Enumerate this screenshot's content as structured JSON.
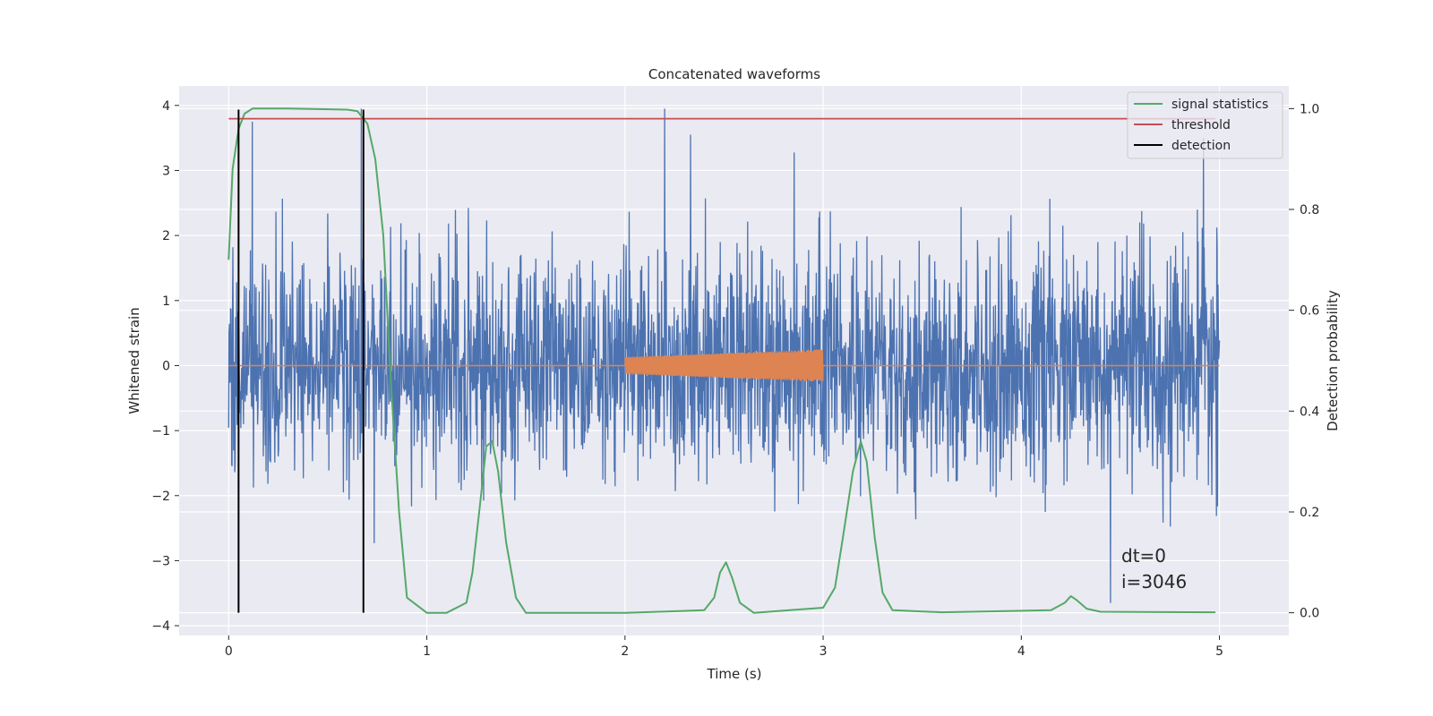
{
  "chart_data": {
    "type": "line",
    "title": "Concatenated waveforms",
    "xlabel": "Time (s)",
    "ylabel": "Whitened strain",
    "y2label": "Detection probability",
    "xlim": [
      -0.25,
      5.35
    ],
    "ylim": [
      -4.15,
      4.3
    ],
    "y2lim": [
      -0.045,
      1.045
    ],
    "xticks": [
      0,
      1,
      2,
      3,
      4,
      5
    ],
    "yticks": [
      -4,
      -3,
      -2,
      -1,
      0,
      1,
      2,
      3,
      4
    ],
    "y2ticks": [
      0.0,
      0.2,
      0.4,
      0.6,
      0.8,
      1.0
    ],
    "ytick_labels": [
      "−4",
      "−3",
      "−2",
      "−1",
      "0",
      "1",
      "2",
      "3",
      "4"
    ],
    "xtick_labels": [
      "0",
      "1",
      "2",
      "3",
      "4",
      "5"
    ],
    "y2tick_labels": [
      "0.0",
      "0.2",
      "0.4",
      "0.6",
      "0.8",
      "1.0"
    ],
    "grid": true,
    "legend_position": "top-right",
    "colors": {
      "background": "#eaeaf2",
      "strain": "#4c72b0",
      "injected": "#dd8452",
      "signal_statistics": "#55a868",
      "threshold": "#c44e52",
      "detection": "#000000"
    },
    "series": [
      {
        "name": "signal statistics",
        "axis": "right",
        "x": [
          0.0,
          0.02,
          0.05,
          0.08,
          0.12,
          0.3,
          0.6,
          0.65,
          0.7,
          0.74,
          0.78,
          0.8,
          0.82,
          0.86,
          0.9,
          1.0,
          1.1,
          1.2,
          1.23,
          1.27,
          1.3,
          1.33,
          1.36,
          1.4,
          1.45,
          1.5,
          2.0,
          2.4,
          2.45,
          2.48,
          2.51,
          2.54,
          2.58,
          2.65,
          3.0,
          3.06,
          3.1,
          3.15,
          3.19,
          3.22,
          3.26,
          3.3,
          3.35,
          3.6,
          4.15,
          4.22,
          4.25,
          4.28,
          4.33,
          4.4,
          4.98
        ],
        "y": [
          0.7,
          0.88,
          0.96,
          0.99,
          1.0,
          1.0,
          0.998,
          0.995,
          0.97,
          0.9,
          0.75,
          0.6,
          0.45,
          0.2,
          0.03,
          0.0,
          0.0,
          0.02,
          0.08,
          0.22,
          0.33,
          0.34,
          0.28,
          0.14,
          0.03,
          0.0,
          0.0,
          0.005,
          0.03,
          0.08,
          0.1,
          0.07,
          0.02,
          0.0,
          0.01,
          0.05,
          0.15,
          0.28,
          0.34,
          0.3,
          0.15,
          0.04,
          0.005,
          0.001,
          0.005,
          0.02,
          0.033,
          0.025,
          0.008,
          0.002,
          0.001
        ]
      },
      {
        "name": "threshold",
        "axis": "right",
        "x": [
          0.0,
          4.98
        ],
        "y": [
          0.98,
          0.98
        ]
      },
      {
        "name": "detection",
        "axis": "right",
        "segments": [
          {
            "x": 0.05,
            "y0": 0.0,
            "y1": 0.998
          },
          {
            "x": 0.68,
            "y0": 0.0,
            "y1": 0.998
          }
        ]
      }
    ],
    "noise_series": {
      "axis": "left",
      "t_start": 0.0,
      "t_end": 5.0,
      "approx_amplitude_range": [
        -3.5,
        3.95
      ],
      "peaks": [
        {
          "x": 0.12,
          "y": 3.75
        },
        {
          "x": 0.67,
          "y": 3.95
        },
        {
          "x": 2.2,
          "y": 3.95
        },
        {
          "x": 2.33,
          "y": 3.55
        },
        {
          "x": 4.92,
          "y": 3.5
        },
        {
          "x": 4.45,
          "y": -3.65
        }
      ]
    },
    "injected_chirp": {
      "axis": "left",
      "x_start": 2.0,
      "x_end": 3.0,
      "amplitude_start": 0.13,
      "amplitude_end": 0.25,
      "baseline": 0.0
    },
    "annotations": [
      "dt=0",
      "i=3046"
    ]
  }
}
